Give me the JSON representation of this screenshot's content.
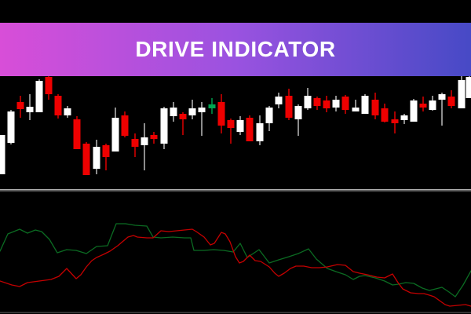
{
  "header": {
    "title": "DRIVE INDICATOR",
    "gradient_left": "#d84ed8",
    "gradient_mid": "#9a52e0",
    "gradient_right": "#474ac6",
    "text_color": "#ffffff"
  },
  "chart_data": [
    {
      "type": "candlestick",
      "title": "price panel (no axis labels visible)",
      "units": "pixel coordinates, y down; no gridlines, black background",
      "background": "#000000",
      "candle_width": 9,
      "colors": {
        "bull": "#ffffff",
        "bear": "#ee0000",
        "doji_green": "#00a651",
        "doji_red": "#ee0000",
        "wick_grey": "#c8c8c8"
      },
      "candles_format": [
        "x_center",
        "high_y",
        "body_top_y",
        "body_bottom_y",
        "low_y",
        "type"
      ],
      "candles": [
        [
          2,
          172,
          172,
          222,
          222,
          "bull"
        ],
        [
          14,
          140,
          142,
          182,
          184,
          "bull"
        ],
        [
          26,
          122,
          130,
          139,
          150,
          "bear"
        ],
        [
          38,
          120,
          136,
          143,
          153,
          "bull"
        ],
        [
          50,
          101,
          103,
          143,
          143,
          "bull"
        ],
        [
          62,
          96,
          98,
          120,
          127,
          "bear"
        ],
        [
          74,
          120,
          122,
          147,
          151,
          "bear"
        ],
        [
          86,
          135,
          138,
          147,
          150,
          "bull"
        ],
        [
          98,
          148,
          152,
          190,
          190,
          "bear"
        ],
        [
          110,
          181,
          183,
          223,
          223,
          "bear"
        ],
        [
          123,
          178,
          187,
          215,
          222,
          "bull"
        ],
        [
          135,
          183,
          185,
          200,
          217,
          "bear"
        ],
        [
          147,
          137,
          150,
          193,
          193,
          "bull"
        ],
        [
          159,
          142,
          147,
          173,
          175,
          "bear"
        ],
        [
          172,
          170,
          177,
          187,
          200,
          "bear"
        ],
        [
          184,
          157,
          175,
          185,
          217,
          "bull"
        ],
        [
          196,
          168,
          172,
          177,
          183,
          "doji_red"
        ],
        [
          209,
          136,
          138,
          183,
          190,
          "bull"
        ],
        [
          221,
          130,
          137,
          148,
          155,
          "bull"
        ],
        [
          233,
          143,
          145,
          152,
          172,
          "bear"
        ],
        [
          245,
          127,
          138,
          147,
          152,
          "bull"
        ],
        [
          257,
          130,
          137,
          143,
          173,
          "bull"
        ],
        [
          270,
          125,
          133,
          138,
          145,
          "doji_green"
        ],
        [
          282,
          120,
          130,
          160,
          170,
          "bear"
        ],
        [
          294,
          151,
          153,
          163,
          183,
          "bear"
        ],
        [
          306,
          148,
          153,
          168,
          172,
          "bull"
        ],
        [
          318,
          147,
          150,
          180,
          180,
          "bear"
        ],
        [
          331,
          147,
          157,
          180,
          185,
          "bull"
        ],
        [
          343,
          135,
          137,
          157,
          167,
          "bull"
        ],
        [
          355,
          118,
          123,
          133,
          138,
          "bull"
        ],
        [
          368,
          113,
          122,
          150,
          153,
          "bear"
        ],
        [
          380,
          133,
          135,
          152,
          173,
          "bull"
        ],
        [
          392,
          112,
          122,
          138,
          140,
          "bull"
        ],
        [
          404,
          123,
          125,
          135,
          140,
          "bear"
        ],
        [
          416,
          122,
          128,
          138,
          143,
          "bear"
        ],
        [
          428,
          122,
          127,
          137,
          142,
          "bull"
        ],
        [
          440,
          121,
          123,
          140,
          145,
          "bear"
        ],
        [
          453,
          127,
          137,
          142,
          142,
          "bull"
        ],
        [
          465,
          120,
          122,
          145,
          145,
          "bull"
        ],
        [
          478,
          118,
          127,
          147,
          152,
          "bear"
        ],
        [
          490,
          132,
          138,
          155,
          156,
          "bear"
        ],
        [
          503,
          142,
          152,
          157,
          170,
          "doji_red"
        ],
        [
          515,
          145,
          147,
          153,
          158,
          "bull"
        ],
        [
          527,
          126,
          128,
          155,
          155,
          "bull"
        ],
        [
          539,
          123,
          132,
          137,
          142,
          "bear"
        ],
        [
          551,
          122,
          128,
          140,
          141,
          "bull"
        ],
        [
          563,
          118,
          120,
          127,
          160,
          "bull"
        ],
        [
          575,
          115,
          123,
          135,
          138,
          "bear"
        ],
        [
          588,
          97,
          102,
          138,
          138,
          "bull"
        ],
        [
          598,
          96,
          98,
          125,
          125,
          "bull"
        ]
      ]
    },
    {
      "type": "line",
      "title": "drive oscillator panel (no axis labels visible)",
      "units": "pixel coordinates, y down; no gridlines, black background",
      "background": "#000000",
      "series": [
        {
          "name": "green-indicator-line",
          "color": "#0b6b22",
          "points": [
            [
              0,
              320
            ],
            [
              10,
              298
            ],
            [
              25,
              292
            ],
            [
              35,
              297
            ],
            [
              45,
              293
            ],
            [
              53,
              295
            ],
            [
              63,
              305
            ],
            [
              73,
              322
            ],
            [
              85,
              318
            ],
            [
              97,
              319
            ],
            [
              110,
              323
            ],
            [
              123,
              314
            ],
            [
              137,
              313
            ],
            [
              148,
              285
            ],
            [
              160,
              285
            ],
            [
              172,
              287
            ],
            [
              187,
              288
            ],
            [
              195,
              302
            ],
            [
              205,
              303
            ],
            [
              220,
              302
            ],
            [
              235,
              303
            ],
            [
              243,
              303
            ],
            [
              247,
              319
            ],
            [
              260,
              319
            ],
            [
              272,
              318
            ],
            [
              285,
              319
            ],
            [
              297,
              321
            ],
            [
              306,
              310
            ],
            [
              315,
              328
            ],
            [
              330,
              318
            ],
            [
              343,
              335
            ],
            [
              355,
              331
            ],
            [
              368,
              327
            ],
            [
              380,
              323
            ],
            [
              393,
              317
            ],
            [
              403,
              330
            ],
            [
              417,
              342
            ],
            [
              428,
              346
            ],
            [
              440,
              350
            ],
            [
              450,
              356
            ],
            [
              458,
              352
            ],
            [
              465,
              351
            ],
            [
              478,
              354
            ],
            [
              490,
              358
            ],
            [
              500,
              363
            ],
            [
              508,
              362
            ],
            [
              517,
              360
            ],
            [
              527,
              361
            ],
            [
              538,
              367
            ],
            [
              547,
              370
            ],
            [
              555,
              368
            ],
            [
              563,
              366
            ],
            [
              572,
              372
            ],
            [
              580,
              378
            ],
            [
              590,
              363
            ],
            [
              600,
              345
            ]
          ]
        },
        {
          "name": "red-indicator-line",
          "color": "#c40000",
          "points": [
            [
              0,
              358
            ],
            [
              15,
              363
            ],
            [
              25,
              365
            ],
            [
              35,
              360
            ],
            [
              50,
              358
            ],
            [
              65,
              356
            ],
            [
              75,
              352
            ],
            [
              85,
              342
            ],
            [
              97,
              355
            ],
            [
              103,
              350
            ],
            [
              110,
              340
            ],
            [
              117,
              332
            ],
            [
              123,
              328
            ],
            [
              132,
              324
            ],
            [
              140,
              320
            ],
            [
              150,
              313
            ],
            [
              163,
              302
            ],
            [
              170,
              300
            ],
            [
              175,
              302
            ],
            [
              187,
              303
            ],
            [
              195,
              303
            ],
            [
              205,
              294
            ],
            [
              215,
              295
            ],
            [
              225,
              294
            ],
            [
              235,
              293
            ],
            [
              245,
              292
            ],
            [
              250,
              295
            ],
            [
              260,
              302
            ],
            [
              268,
              312
            ],
            [
              273,
              310
            ],
            [
              282,
              296
            ],
            [
              287,
              298
            ],
            [
              293,
              308
            ],
            [
              300,
              327
            ],
            [
              305,
              335
            ],
            [
              310,
              333
            ],
            [
              318,
              325
            ],
            [
              325,
              332
            ],
            [
              332,
              333
            ],
            [
              343,
              340
            ],
            [
              350,
              348
            ],
            [
              355,
              352
            ],
            [
              362,
              348
            ],
            [
              370,
              342
            ],
            [
              377,
              339
            ],
            [
              387,
              339
            ],
            [
              397,
              341
            ],
            [
              407,
              341
            ],
            [
              417,
              340
            ],
            [
              430,
              337
            ],
            [
              440,
              338
            ],
            [
              450,
              346
            ],
            [
              458,
              348
            ],
            [
              468,
              350
            ],
            [
              480,
              353
            ],
            [
              490,
              354
            ],
            [
              500,
              349
            ],
            [
              507,
              360
            ],
            [
              513,
              368
            ],
            [
              523,
              373
            ],
            [
              533,
              374
            ],
            [
              540,
              374
            ],
            [
              547,
              376
            ],
            [
              553,
              378
            ],
            [
              560,
              383
            ],
            [
              567,
              388
            ],
            [
              573,
              390
            ],
            [
              583,
              389
            ],
            [
              593,
              388
            ],
            [
              600,
              390
            ]
          ]
        }
      ],
      "legend": "none",
      "grid": "off"
    }
  ],
  "dividers": {
    "panel_divider_light": "#b5b5b5",
    "panel_divider_dark": "#4a4a4a",
    "bottom_edge": "#3c3c3c"
  }
}
